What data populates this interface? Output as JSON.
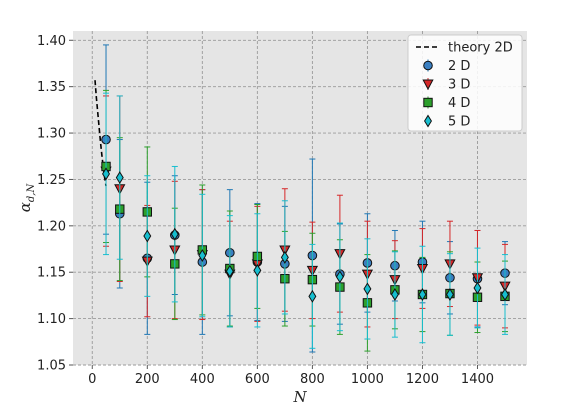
{
  "chart_data": {
    "type": "scatter",
    "title": "",
    "xlabel": "N",
    "ylabel_main": "α",
    "ylabel_sub": "d,N",
    "xlim": [
      -70,
      1580
    ],
    "ylim": [
      1.05,
      1.41
    ],
    "xticks": [
      0,
      200,
      400,
      600,
      800,
      1000,
      1200,
      1400
    ],
    "yticks": [
      1.05,
      1.1,
      1.15,
      1.2,
      1.25,
      1.3,
      1.35,
      1.4
    ],
    "xtick_labels": [
      "0",
      "200",
      "400",
      "600",
      "800",
      "1000",
      "1200",
      "1400"
    ],
    "ytick_labels": [
      "1.05",
      "1.10",
      "1.15",
      "1.20",
      "1.25",
      "1.30",
      "1.35",
      "1.40"
    ],
    "grid": true,
    "legend_position": "top-right",
    "theory": {
      "name": "theory 2D",
      "color": "#000000",
      "x": [
        10,
        15,
        20,
        25,
        30,
        35,
        40,
        45,
        50
      ],
      "y": [
        1.357,
        1.338,
        1.322,
        1.306,
        1.29,
        1.276,
        1.263,
        1.252,
        1.243
      ]
    },
    "series": [
      {
        "name": "2 D",
        "marker": "circle",
        "face": "#3a7fc1",
        "errcolor": "#1f77b4",
        "x": [
          50,
          100,
          200,
          300,
          400,
          500,
          600,
          700,
          800,
          900,
          1000,
          1100,
          1200,
          1300,
          1400,
          1500
        ],
        "y": [
          1.293,
          1.213,
          1.165,
          1.19,
          1.161,
          1.171,
          1.161,
          1.159,
          1.168,
          1.148,
          1.16,
          1.157,
          1.161,
          1.144,
          1.143,
          1.149
        ],
        "err": [
          0.102,
          0.08,
          0.082,
          0.064,
          0.078,
          0.068,
          0.063,
          0.062,
          0.104,
          0.054,
          0.053,
          0.038,
          0.044,
          0.039,
          0.052,
          0.034
        ]
      },
      {
        "name": "3 D",
        "marker": "triangle-down",
        "face": "#d62728",
        "errcolor": "#d62728",
        "x": [
          50,
          100,
          200,
          300,
          400,
          500,
          600,
          700,
          800,
          900,
          1000,
          1100,
          1200,
          1300,
          1400,
          1500
        ],
        "y": [
          1.259,
          1.24,
          1.162,
          1.174,
          1.169,
          1.148,
          1.159,
          1.174,
          1.152,
          1.17,
          1.148,
          1.142,
          1.154,
          1.159,
          1.144,
          1.135
        ],
        "err": [
          0.081,
          0.1,
          0.06,
          0.074,
          0.07,
          0.057,
          0.062,
          0.066,
          0.052,
          0.063,
          0.057,
          0.042,
          0.043,
          0.046,
          0.051,
          0.045
        ]
      },
      {
        "name": "4 D",
        "marker": "square",
        "face": "#2ca02c",
        "errcolor": "#2ca02c",
        "x": [
          50,
          100,
          200,
          300,
          400,
          500,
          600,
          700,
          800,
          900,
          1000,
          1100,
          1200,
          1300,
          1400,
          1500
        ],
        "y": [
          1.264,
          1.218,
          1.215,
          1.159,
          1.174,
          1.154,
          1.167,
          1.143,
          1.142,
          1.134,
          1.117,
          1.131,
          1.126,
          1.127,
          1.123,
          1.124
        ],
        "err": [
          0.082,
          0.077,
          0.07,
          0.06,
          0.07,
          0.062,
          0.056,
          0.051,
          0.05,
          0.051,
          0.052,
          0.042,
          0.04,
          0.045,
          0.038,
          0.038
        ]
      },
      {
        "name": "5 D",
        "marker": "diamond",
        "face": "#17becf",
        "errcolor": "#17becf",
        "x": [
          50,
          100,
          200,
          300,
          400,
          500,
          600,
          700,
          800,
          900,
          1000,
          1100,
          1200,
          1300,
          1400,
          1500
        ],
        "y": [
          1.256,
          1.252,
          1.189,
          1.191,
          1.168,
          1.151,
          1.152,
          1.166,
          1.124,
          1.145,
          1.132,
          1.126,
          1.126,
          1.126,
          1.133,
          1.126
        ],
        "err": [
          0.087,
          0.088,
          0.065,
          0.073,
          0.066,
          0.06,
          0.061,
          0.061,
          0.056,
          0.058,
          0.054,
          0.046,
          0.052,
          0.044,
          0.043,
          0.043
        ]
      }
    ]
  }
}
